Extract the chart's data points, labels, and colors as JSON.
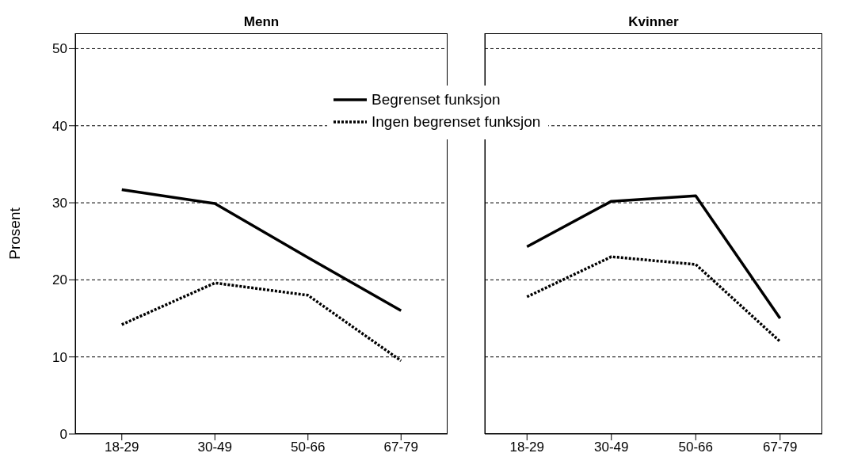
{
  "chart_data": [
    {
      "type": "line",
      "title": "Menn",
      "ylabel": "Prosent",
      "categories": [
        "18-29",
        "30-49",
        "50-66",
        "67-79"
      ],
      "ylim": [
        0,
        52
      ],
      "yticks": [
        0,
        10,
        20,
        30,
        40,
        50
      ],
      "grid": "y",
      "legend": "top",
      "marker": "none",
      "series": [
        {
          "name": "Begrenset funksjon",
          "color": "#000000",
          "line_style": "solid",
          "values": [
            31.7,
            29.9,
            22.9,
            16.0
          ]
        },
        {
          "name": "Ingen begrenset funksjon",
          "color": "#000000",
          "line_style": "dotted",
          "values": [
            14.2,
            19.6,
            18.0,
            9.5
          ]
        }
      ]
    },
    {
      "type": "line",
      "title": "Kvinner",
      "categories": [
        "18-29",
        "30-49",
        "50-66",
        "67-79"
      ],
      "ylim": [
        0,
        52
      ],
      "yticks": [
        0,
        10,
        20,
        30,
        40,
        50
      ],
      "grid": "y",
      "tick_labels": "x",
      "marker": "none",
      "series": [
        {
          "name": "Begrenset funksjon",
          "color": "#000000",
          "line_style": "solid",
          "values": [
            24.3,
            30.2,
            30.9,
            15.0
          ]
        },
        {
          "name": "Ingen begrenset funksjon",
          "color": "#000000",
          "line_style": "dotted",
          "values": [
            17.8,
            23.0,
            22.0,
            12.0
          ]
        }
      ]
    }
  ]
}
